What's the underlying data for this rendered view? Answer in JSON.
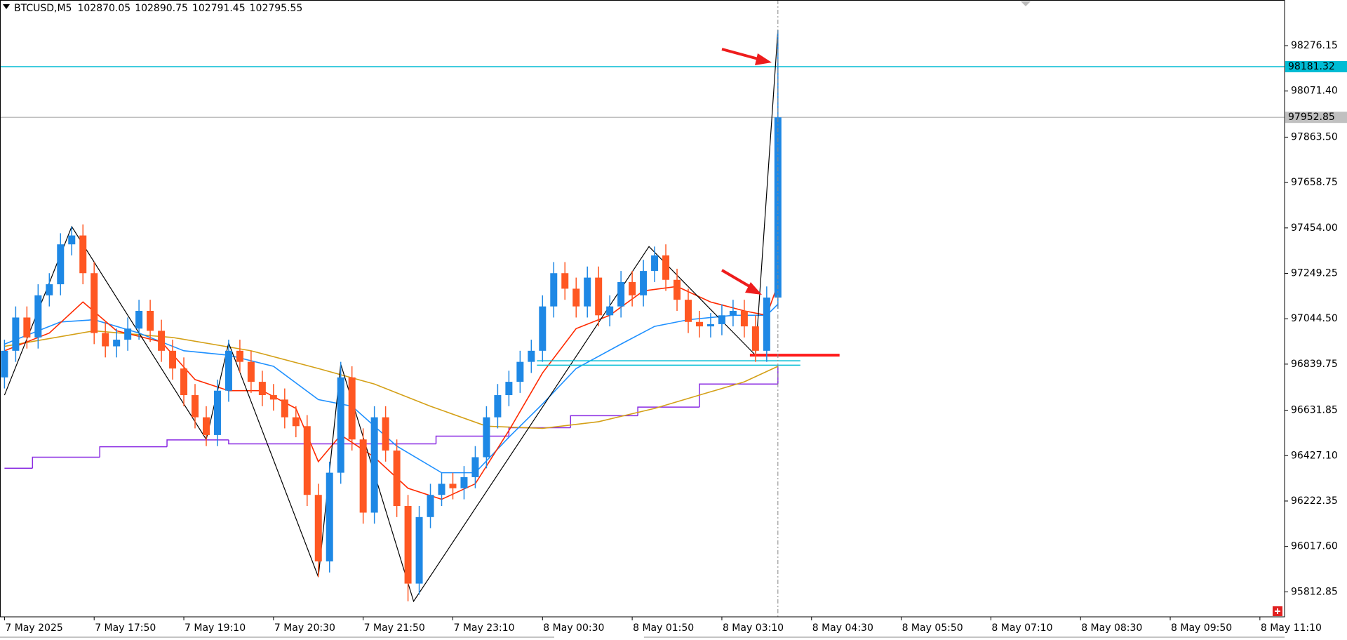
{
  "chart_data": {
    "type": "candlestick",
    "title": "BTCUSD,M5",
    "ohlc": [
      102870.05,
      102890.75,
      102791.45,
      102795.55
    ],
    "xlim": [
      -0.8,
      228.4
    ],
    "ylim": [
      95700,
      98482
    ],
    "xticks": [
      {
        "value": 0,
        "label": "7 May 2025"
      },
      {
        "value": 16,
        "label": "7 May 17:50"
      },
      {
        "value": 32,
        "label": "7 May 19:10"
      },
      {
        "value": 48,
        "label": "7 May 20:30"
      },
      {
        "value": 64,
        "label": "7 May 21:50"
      },
      {
        "value": 80,
        "label": "7 May 23:10"
      },
      {
        "value": 96,
        "label": "8 May 00:30"
      },
      {
        "value": 112,
        "label": "8 May 01:50"
      },
      {
        "value": 128,
        "label": "8 May 03:10"
      },
      {
        "value": 144,
        "label": "8 May 04:30"
      },
      {
        "value": 160,
        "label": "8 May 05:50"
      },
      {
        "value": 176,
        "label": "8 May 07:10"
      },
      {
        "value": 192,
        "label": "8 May 08:30"
      },
      {
        "value": 208,
        "label": "8 May 09:50"
      },
      {
        "value": 224,
        "label": "8 May 11:10"
      }
    ],
    "yticks": [
      98276.15,
      {
        "value": 98071.4,
        "label": "98071.40"
      },
      {
        "value": 97863.5,
        "label": "97863.50"
      },
      97658.75,
      {
        "value": 97454,
        "label": "97454.00"
      },
      97249.25,
      {
        "value": 97044.5,
        "label": "97044.50"
      },
      96839.75,
      96631.85,
      {
        "value": 96427.1,
        "label": "96427.10"
      },
      96222.35,
      {
        "value": 96017.6,
        "label": "96017.60"
      },
      95812.85
    ],
    "up_color": "#1e88e5",
    "down_color": "#ff5722",
    "x": [
      0,
      2,
      4,
      6,
      8,
      10,
      12,
      14,
      16,
      18,
      20,
      22,
      24,
      26,
      28,
      30,
      32,
      34,
      36,
      38,
      40,
      42,
      44,
      46,
      48,
      50,
      52,
      54,
      56,
      58,
      60,
      62,
      64,
      66,
      68,
      70,
      72,
      74,
      76,
      78,
      80,
      82,
      84,
      86,
      88,
      90,
      92,
      94,
      96,
      98,
      100,
      102,
      104,
      106,
      108,
      110,
      112,
      114,
      116,
      118,
      120,
      122,
      124,
      126,
      128,
      130,
      132,
      134,
      136,
      138
    ],
    "open": [
      96780,
      96900,
      97050,
      96960,
      97150,
      97200,
      97380,
      97420,
      97250,
      96980,
      96920,
      96950,
      97000,
      97080,
      96990,
      96900,
      96820,
      96700,
      96600,
      96520,
      96720,
      96900,
      96850,
      96760,
      96700,
      96680,
      96600,
      96560,
      96250,
      95950,
      96350,
      96780,
      96500,
      96170,
      96600,
      96450,
      96200,
      95850,
      96150,
      96250,
      96300,
      96280,
      96330,
      96420,
      96600,
      96700,
      96760,
      96850,
      96900,
      97100,
      97250,
      97180,
      97100,
      97230,
      97060,
      97100,
      97210,
      97150,
      97260,
      97330,
      97220,
      97130,
      97030,
      97010,
      97020,
      97060,
      97080,
      97010,
      96900,
      97140
    ],
    "high": [
      96950,
      97100,
      97100,
      97200,
      97250,
      97430,
      97460,
      97470,
      97300,
      97030,
      97000,
      97050,
      97130,
      97130,
      97040,
      96950,
      96870,
      96750,
      96650,
      96770,
      96950,
      96950,
      96900,
      96810,
      96750,
      96730,
      96650,
      96610,
      96300,
      96400,
      96850,
      96830,
      96550,
      96650,
      96650,
      96500,
      96250,
      96200,
      96300,
      96350,
      96350,
      96380,
      96470,
      96650,
      96750,
      96810,
      96900,
      96950,
      97150,
      97300,
      97300,
      97230,
      97280,
      97280,
      97150,
      97260,
      97260,
      97310,
      97370,
      97380,
      97270,
      97180,
      97080,
      97070,
      97110,
      97130,
      97130,
      97060,
      97190,
      98346
    ],
    "low": [
      96730,
      96850,
      96910,
      96910,
      97100,
      97150,
      97330,
      97200,
      96930,
      96870,
      96870,
      96900,
      96950,
      96940,
      96850,
      96770,
      96650,
      96550,
      96470,
      96470,
      96670,
      96800,
      96710,
      96650,
      96630,
      96550,
      96510,
      96200,
      95880,
      95900,
      96300,
      96450,
      96120,
      96120,
      96400,
      96150,
      95770,
      95800,
      96100,
      96200,
      96230,
      96230,
      96280,
      96370,
      96550,
      96650,
      96710,
      96800,
      96850,
      97050,
      97130,
      97050,
      97050,
      97010,
      97010,
      97050,
      97100,
      97100,
      97210,
      97170,
      97080,
      96980,
      96960,
      96960,
      96970,
      97010,
      96960,
      96850,
      96850,
      97090
    ],
    "close": [
      96900,
      97050,
      96960,
      97150,
      97200,
      97380,
      97420,
      97250,
      96980,
      96920,
      96950,
      97000,
      97080,
      96990,
      96900,
      96820,
      96700,
      96600,
      96520,
      96720,
      96900,
      96850,
      96760,
      96700,
      96680,
      96600,
      96560,
      96250,
      95950,
      96350,
      96780,
      96500,
      96170,
      96600,
      96450,
      96200,
      95850,
      96150,
      96250,
      96300,
      96280,
      96330,
      96420,
      96600,
      96700,
      96760,
      96850,
      96900,
      97100,
      97250,
      97180,
      97100,
      97230,
      97060,
      97100,
      97210,
      97150,
      97260,
      97330,
      97220,
      97130,
      97030,
      97010,
      97020,
      97060,
      97080,
      97010,
      96900,
      97140,
      97952.85
    ],
    "overlays": [
      {
        "color": "#d4a017",
        "x": [
          0,
          16,
          30,
          44,
          56,
          66,
          76,
          86,
          96,
          106,
          116,
          124,
          132,
          138
        ],
        "values": [
          96920,
          96990,
          96960,
          96900,
          96820,
          96750,
          96650,
          96560,
          96550,
          96580,
          96640,
          96700,
          96760,
          96830
        ]
      },
      {
        "color": "#1e90ff",
        "x": [
          0,
          10,
          16,
          24,
          32,
          40,
          48,
          56,
          62,
          70,
          78,
          84,
          90,
          96,
          102,
          110,
          116,
          122,
          130,
          136,
          138
        ],
        "values": [
          96930,
          97030,
          97040,
          96980,
          96900,
          96880,
          96830,
          96680,
          96650,
          96470,
          96350,
          96350,
          96510,
          96660,
          96820,
          96930,
          97010,
          97040,
          97060,
          97060,
          97110
        ]
      },
      {
        "color": "#ff2a00",
        "x": [
          0,
          8,
          14,
          20,
          28,
          34,
          40,
          46,
          52,
          56,
          60,
          66,
          72,
          78,
          84,
          90,
          96,
          102,
          108,
          114,
          120,
          126,
          132,
          136,
          138
        ],
        "values": [
          96900,
          96980,
          97120,
          96990,
          96940,
          96770,
          96720,
          96720,
          96640,
          96400,
          96520,
          96420,
          96280,
          96230,
          96300,
          96540,
          96800,
          97000,
          97060,
          97170,
          97190,
          97120,
          97080,
          97060,
          97200
        ]
      },
      {
        "color": "#000000",
        "x": [
          0,
          12,
          36,
          40,
          56,
          60,
          73,
          115,
          134,
          138
        ],
        "values": [
          96700,
          97460,
          96500,
          96935,
          95880,
          96840,
          95770,
          97370,
          96880,
          98346
        ]
      }
    ],
    "step_line": {
      "color": "#8a2be2",
      "x": [
        0,
        5,
        17,
        29,
        40,
        77,
        90,
        101,
        113,
        124,
        138
      ],
      "values": [
        96370,
        96420,
        96467,
        96498,
        96480,
        96515,
        96553,
        96607,
        96646,
        96750,
        96830
      ]
    },
    "levels": [
      {
        "value": 98181.32,
        "color": "#00bcd4"
      },
      {
        "value": 97952.85,
        "color": "#c0c0c0"
      }
    ],
    "segments": [
      {
        "value": 96855,
        "x": [
          95,
          142
        ],
        "color": "#00bcd4"
      },
      {
        "value": 96835,
        "x": [
          95,
          142
        ],
        "color": "#00bcd4"
      },
      {
        "value": 96880,
        "x": [
          133,
          149
        ],
        "color": "#ff1a1a"
      }
    ],
    "marker_x": 138
  }
}
